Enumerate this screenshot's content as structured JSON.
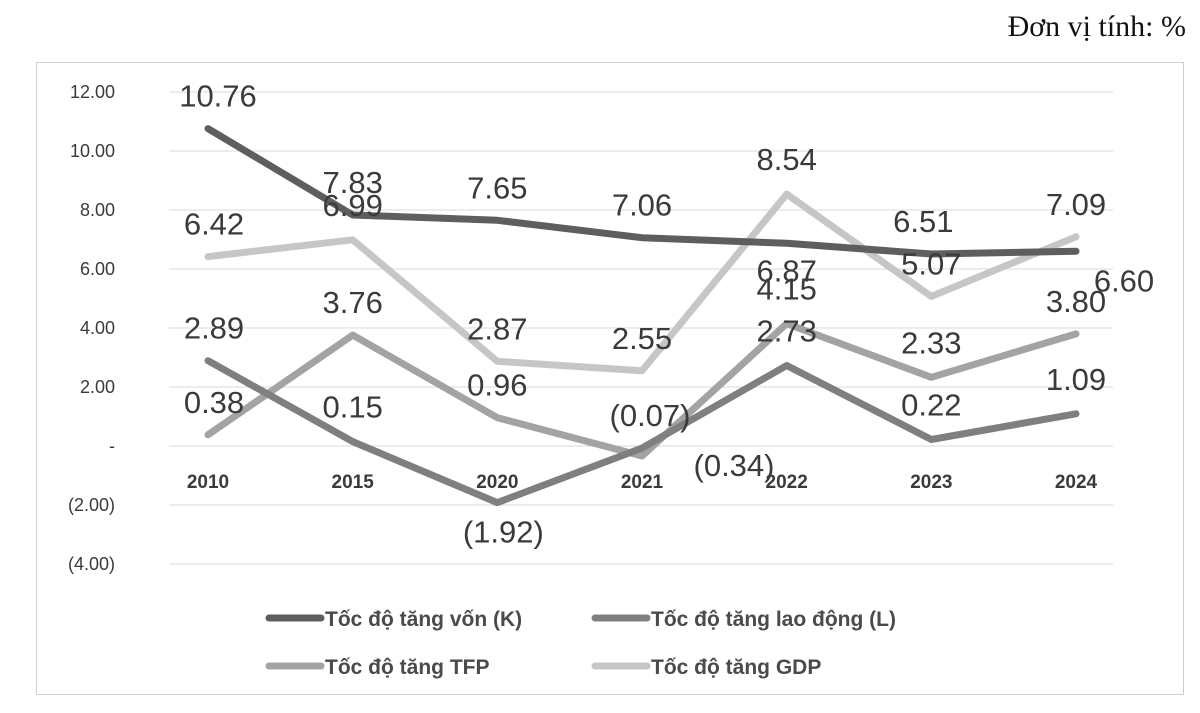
{
  "unit_label": "Đơn vị tính: %",
  "chart_data": {
    "type": "line",
    "title": "",
    "xlabel": "",
    "ylabel": "",
    "categories": [
      "2010",
      "2015",
      "2020",
      "2021",
      "2022",
      "2023",
      "2024"
    ],
    "ylim": [
      -4,
      12
    ],
    "yticks": [
      12,
      10,
      8,
      6,
      4,
      2,
      0,
      -2,
      -4
    ],
    "ytick_labels": [
      "12.00",
      "10.00",
      "8.00",
      "6.00",
      "4.00",
      "2.00",
      "-",
      "(2.00)",
      "(4.00)"
    ],
    "grid": true,
    "legend": "bottom",
    "series": [
      {
        "name": "Tốc độ tăng vốn (K)",
        "color": "#5e5e5e",
        "values": [
          10.76,
          7.83,
          7.65,
          7.06,
          6.87,
          6.51,
          6.6
        ],
        "labels": [
          "10.76",
          "7.83",
          "7.65",
          "7.06",
          "6.87",
          "6.51",
          "6.60"
        ]
      },
      {
        "name": "Tốc độ tăng lao động (L)",
        "color": "#7f7f7f",
        "values": [
          2.89,
          0.15,
          -1.92,
          -0.07,
          2.73,
          0.22,
          1.09
        ],
        "labels": [
          "2.89",
          "0.15",
          "(1.92)",
          "(0.07)",
          "2.73",
          "0.22",
          "1.09"
        ]
      },
      {
        "name": "Tốc độ tăng TFP",
        "color": "#a3a3a3",
        "values": [
          0.38,
          3.76,
          0.96,
          -0.34,
          4.15,
          2.33,
          3.8
        ],
        "labels": [
          "0.38",
          "3.76",
          "0.96",
          "(0.34)",
          "4.15",
          "2.33",
          "3.80"
        ]
      },
      {
        "name": "Tốc độ tăng GDP",
        "color": "#c6c6c6",
        "values": [
          6.42,
          6.99,
          2.87,
          2.55,
          8.54,
          5.07,
          7.09
        ],
        "labels": [
          "6.42",
          "6.99",
          "2.87",
          "2.55",
          "8.54",
          "5.07",
          "7.09"
        ]
      }
    ]
  }
}
